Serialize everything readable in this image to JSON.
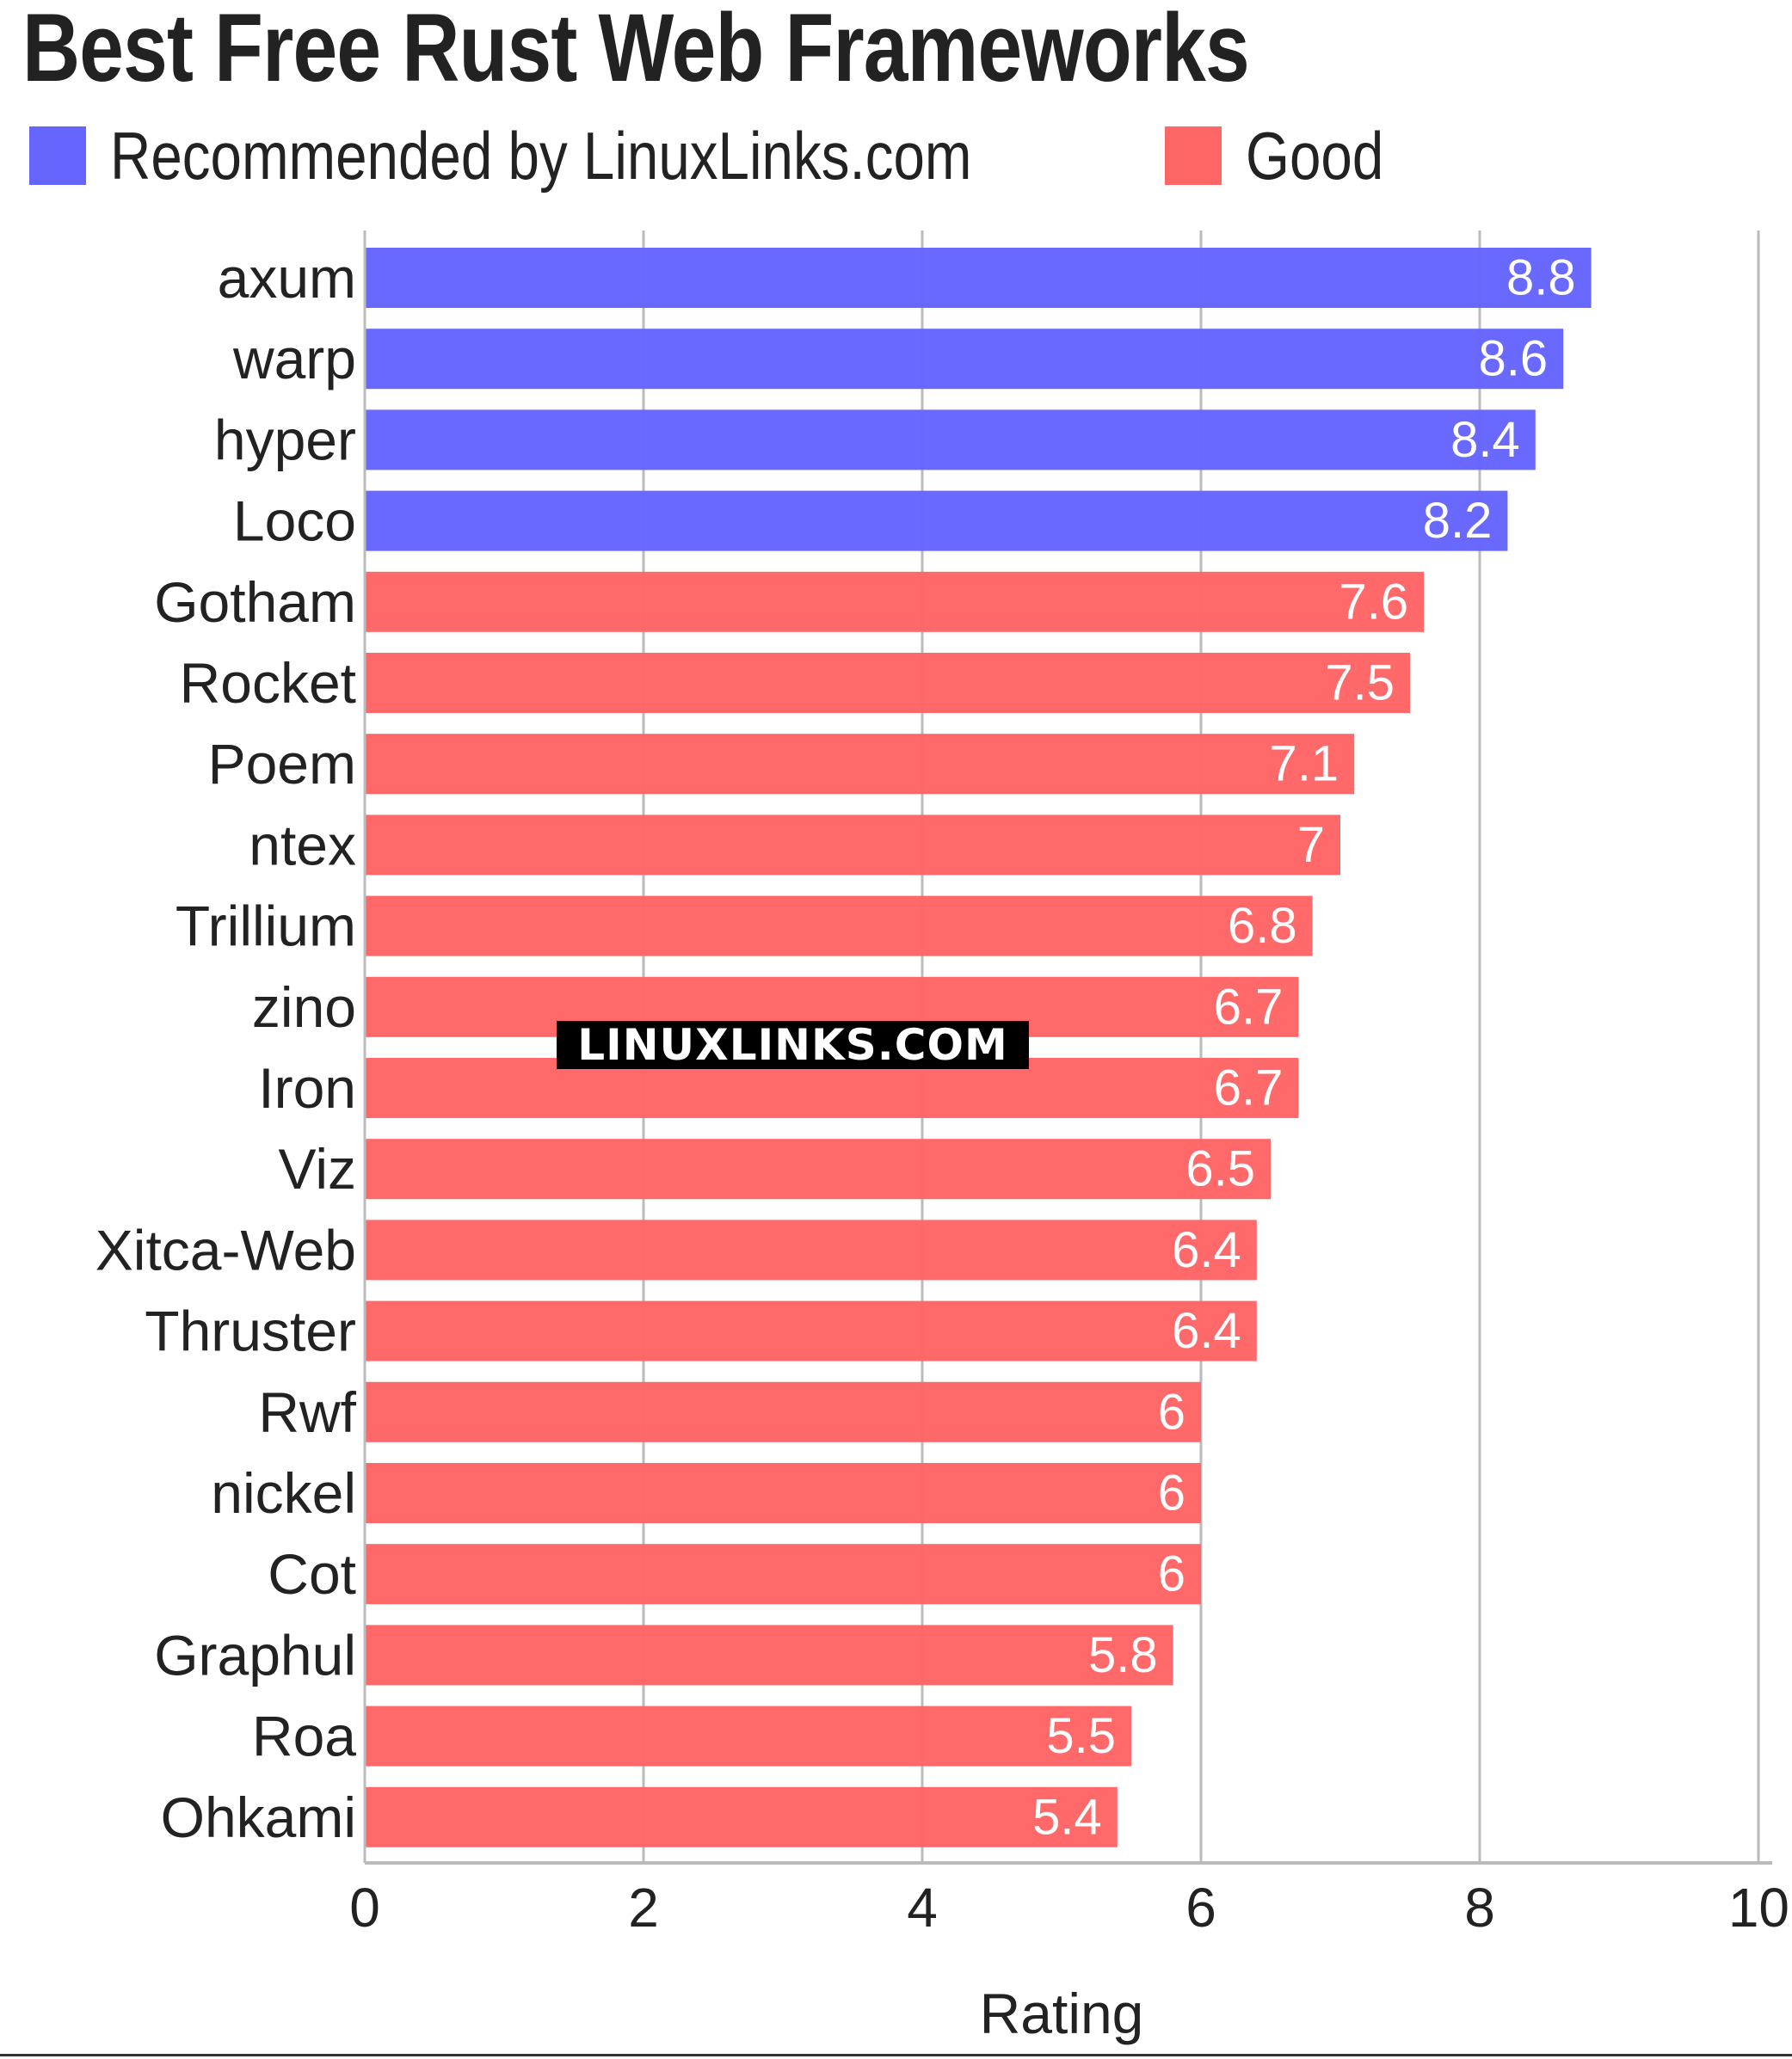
{
  "chart_data": {
    "type": "bar",
    "orientation": "horizontal",
    "title": "Best Free Rust Web Frameworks",
    "xlabel": "Rating",
    "ylabel": "",
    "xlim": [
      0,
      10
    ],
    "xticks": [
      "0",
      "2",
      "4",
      "6",
      "8",
      "10"
    ],
    "grid": true,
    "legend_placement": "top-left",
    "legend": [
      {
        "name": "Recommended by LinuxLinks.com",
        "color": "#6666ff"
      },
      {
        "name": "Good",
        "color": "#ff6666"
      }
    ],
    "categories": [
      "axum",
      "warp",
      "hyper",
      "Loco",
      "Gotham",
      "Rocket",
      "Poem",
      "ntex",
      "Trillium",
      "zino",
      "Iron",
      "Viz",
      "Xitca-Web",
      "Thruster",
      "Rwf",
      "nickel",
      "Cot",
      "Graphul",
      "Roa",
      "Ohkami"
    ],
    "values": [
      8.8,
      8.6,
      8.4,
      8.2,
      7.6,
      7.5,
      7.1,
      7,
      6.8,
      6.7,
      6.7,
      6.5,
      6.4,
      6.4,
      6,
      6,
      6,
      5.8,
      5.5,
      5.4
    ],
    "value_labels": [
      "8.8",
      "8.6",
      "8.4",
      "8.2",
      "7.6",
      "7.5",
      "7.1",
      "7",
      "6.8",
      "6.7",
      "6.7",
      "6.5",
      "6.4",
      "6.4",
      "6",
      "6",
      "6",
      "5.8",
      "5.5",
      "5.4"
    ],
    "bar_group": [
      "Recommended by LinuxLinks.com",
      "Recommended by LinuxLinks.com",
      "Recommended by LinuxLinks.com",
      "Recommended by LinuxLinks.com",
      "Good",
      "Good",
      "Good",
      "Good",
      "Good",
      "Good",
      "Good",
      "Good",
      "Good",
      "Good",
      "Good",
      "Good",
      "Good",
      "Good",
      "Good",
      "Good"
    ]
  },
  "watermark": "LINUXLINKS.COM"
}
